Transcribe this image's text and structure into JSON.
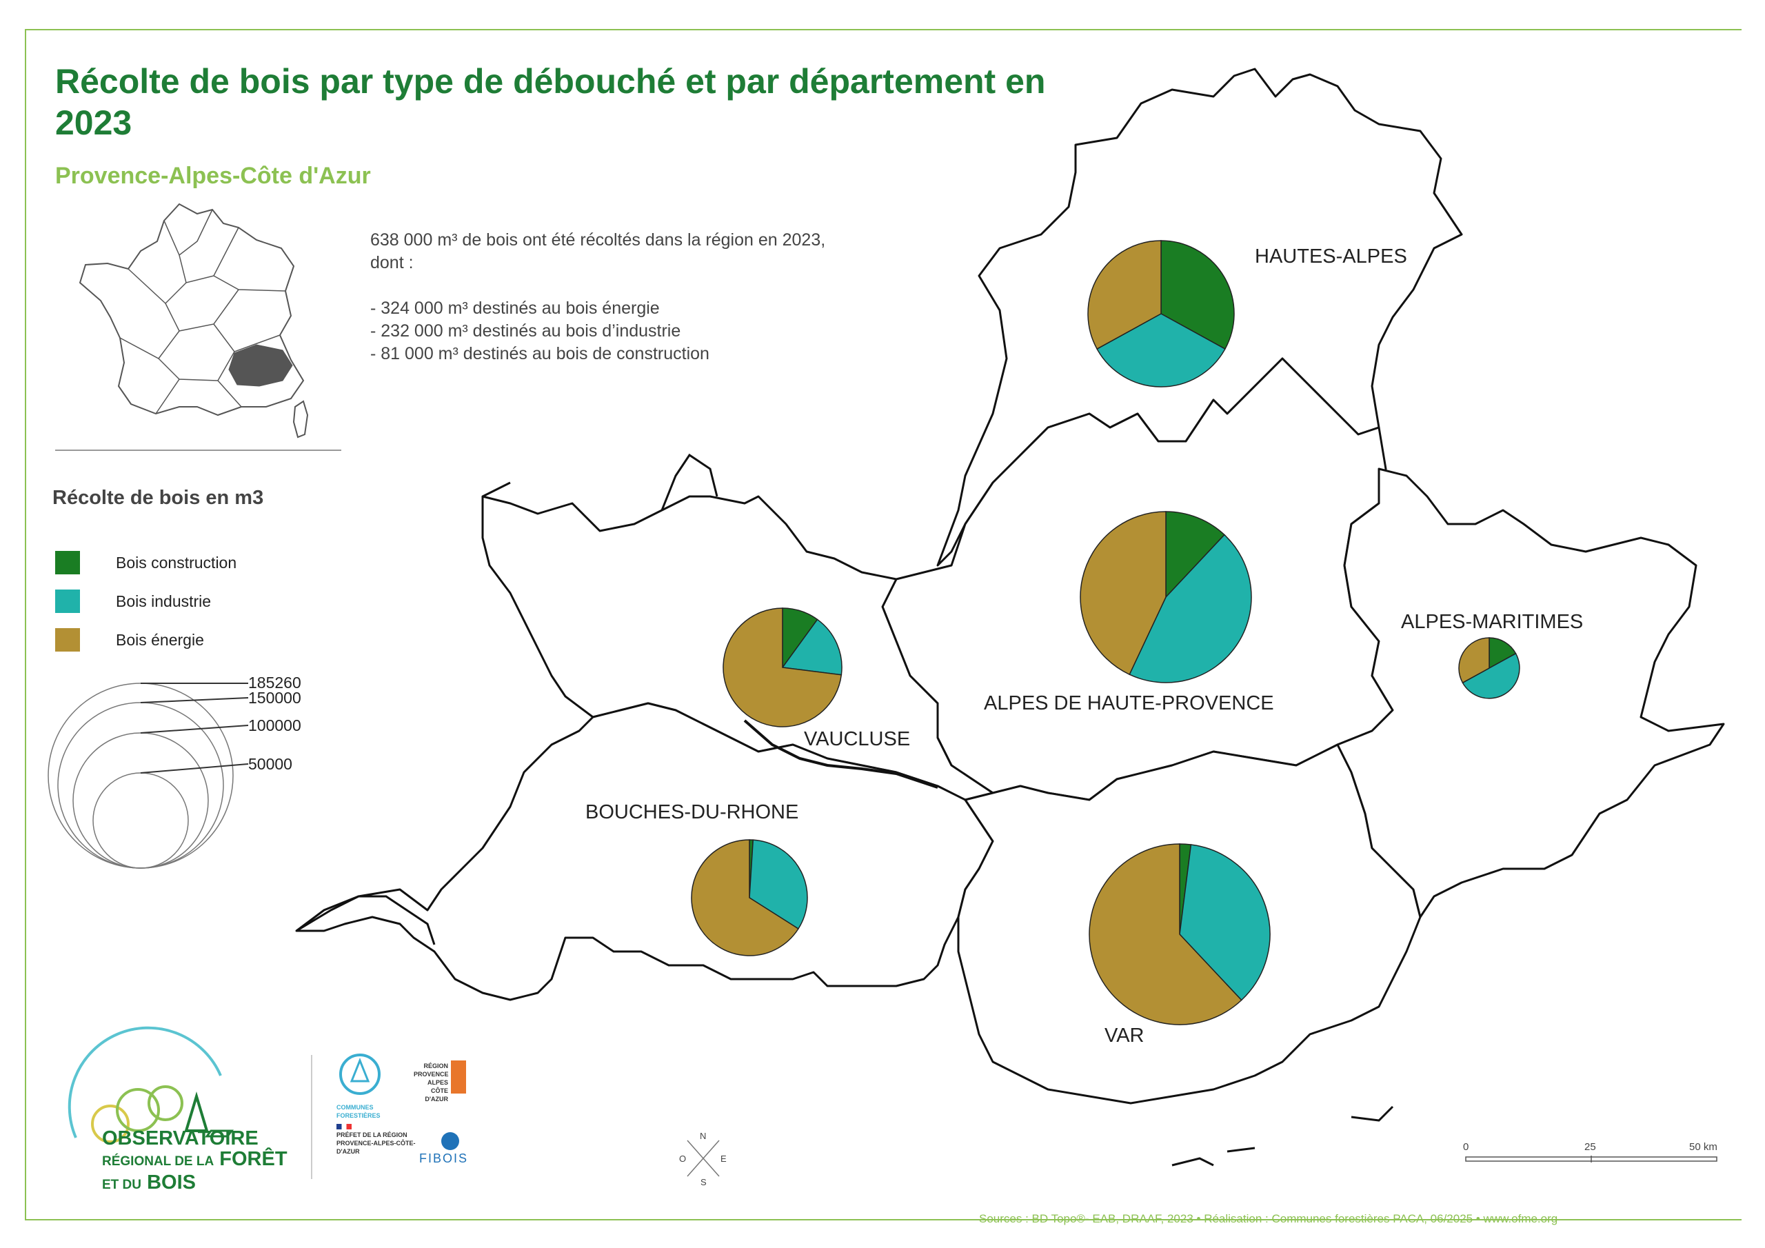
{
  "title": "Récolte de bois par type de débouché et par département en 2023",
  "subtitle": "Provence-Alpes-Côte d'Azur",
  "intro": {
    "line1": "638 000 m³ de bois ont été récoltés dans la région en 2023,",
    "line2": "dont :",
    "items": [
      "- 324 000 m³ destinés au bois énergie",
      "- 232 000 m³ destinés au bois d’industrie",
      "- 81 000 m³ destinés au bois de construction"
    ]
  },
  "legend": {
    "title": "Récolte de bois en m3",
    "items": [
      {
        "label": "Bois construction",
        "color": "#1a7d23"
      },
      {
        "label": "Bois industrie",
        "color": "#20b2aa"
      },
      {
        "label": "Bois énergie",
        "color": "#b39034"
      }
    ],
    "sizes": [
      "185260",
      "150000",
      "100000",
      "50000"
    ]
  },
  "departments": [
    {
      "label": "HAUTES-ALPES",
      "construction": 33,
      "industrie": 34,
      "energie": 33
    },
    {
      "label": "ALPES DE HAUTE-PROVENCE",
      "construction": 12,
      "industrie": 45,
      "energie": 43
    },
    {
      "label": "ALPES-MARITIMES",
      "construction": 17,
      "industrie": 50,
      "energie": 33
    },
    {
      "label": "VAUCLUSE",
      "construction": 10,
      "industrie": 17,
      "energie": 73
    },
    {
      "label": "BOUCHES-DU-RHONE",
      "construction": 1,
      "industrie": 33,
      "energie": 66
    },
    {
      "label": "VAR",
      "construction": 2,
      "industrie": 36,
      "energie": 62
    }
  ],
  "logos": {
    "obs_l1": "OBSERVATOIRE",
    "obs_l2a": "RÉGIONAL DE LA",
    "obs_l2b": "FORÊT",
    "obs_l3a": "ET DU",
    "obs_l3b": "BOIS",
    "communes": "COMMUNES FORESTIÈRES",
    "region": "RÉGION PROVENCE ALPES CÔTE D'AZUR",
    "prefet": "PRÉFET DE LA RÉGION PROVENCE-ALPES-CÔTE-D'AZUR",
    "fibois": "FIBOIS"
  },
  "compass": {
    "n": "N",
    "s": "S",
    "e": "E",
    "o": "O"
  },
  "scale": {
    "t0": "0",
    "t1": "25",
    "t2": "50 km"
  },
  "sources": "Sources : BD Topo®- EAB, DRAAF, 2023 • Réalisation : Communes forestières PACA, 06/2025 • www.ofme.org"
}
